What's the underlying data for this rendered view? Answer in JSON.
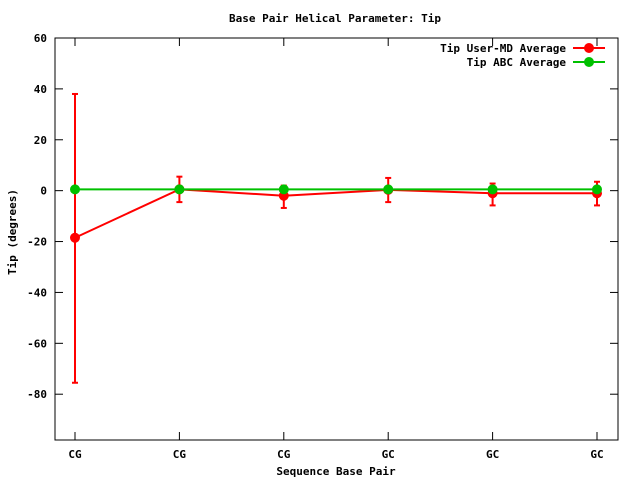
{
  "chart_data": {
    "type": "line",
    "title": "Base Pair Helical Parameter: Tip",
    "xlabel": "Sequence Base Pair",
    "ylabel": "Tip (degrees)",
    "categories": [
      "CG",
      "CG",
      "CG",
      "GC",
      "GC",
      "GC"
    ],
    "ylim": [
      -98,
      60
    ],
    "yticks": [
      -80,
      -60,
      -40,
      -20,
      0,
      20,
      40,
      60
    ],
    "grid": false,
    "legend_position": "top-right",
    "series": [
      {
        "name": "Tip User-MD Average",
        "color": "#ff0000",
        "values": [
          -18.5,
          0.5,
          -2.0,
          0.3,
          -1.0,
          -1.0
        ],
        "err_low": [
          -75.5,
          -4.5,
          -6.8,
          -4.5,
          -5.8,
          -5.8
        ],
        "err_high": [
          38.0,
          5.5,
          2.0,
          5.0,
          2.8,
          3.5
        ]
      },
      {
        "name": "Tip ABC Average",
        "color": "#00c000",
        "values": [
          0.5,
          0.5,
          0.5,
          0.5,
          0.5,
          0.5
        ]
      }
    ]
  }
}
